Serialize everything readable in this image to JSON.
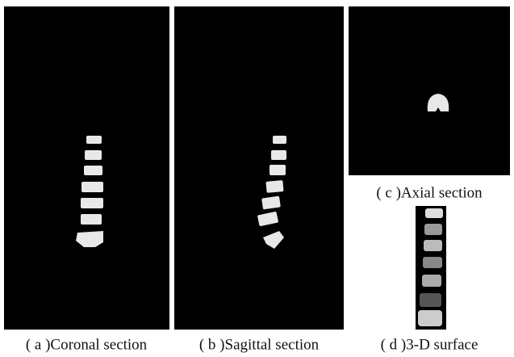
{
  "panels": [
    {
      "caption": "( a )Coronal section"
    },
    {
      "caption": "( b )Sagittal section"
    },
    {
      "caption": "( c )Axial section"
    },
    {
      "caption": "( d )3-D surface"
    }
  ]
}
